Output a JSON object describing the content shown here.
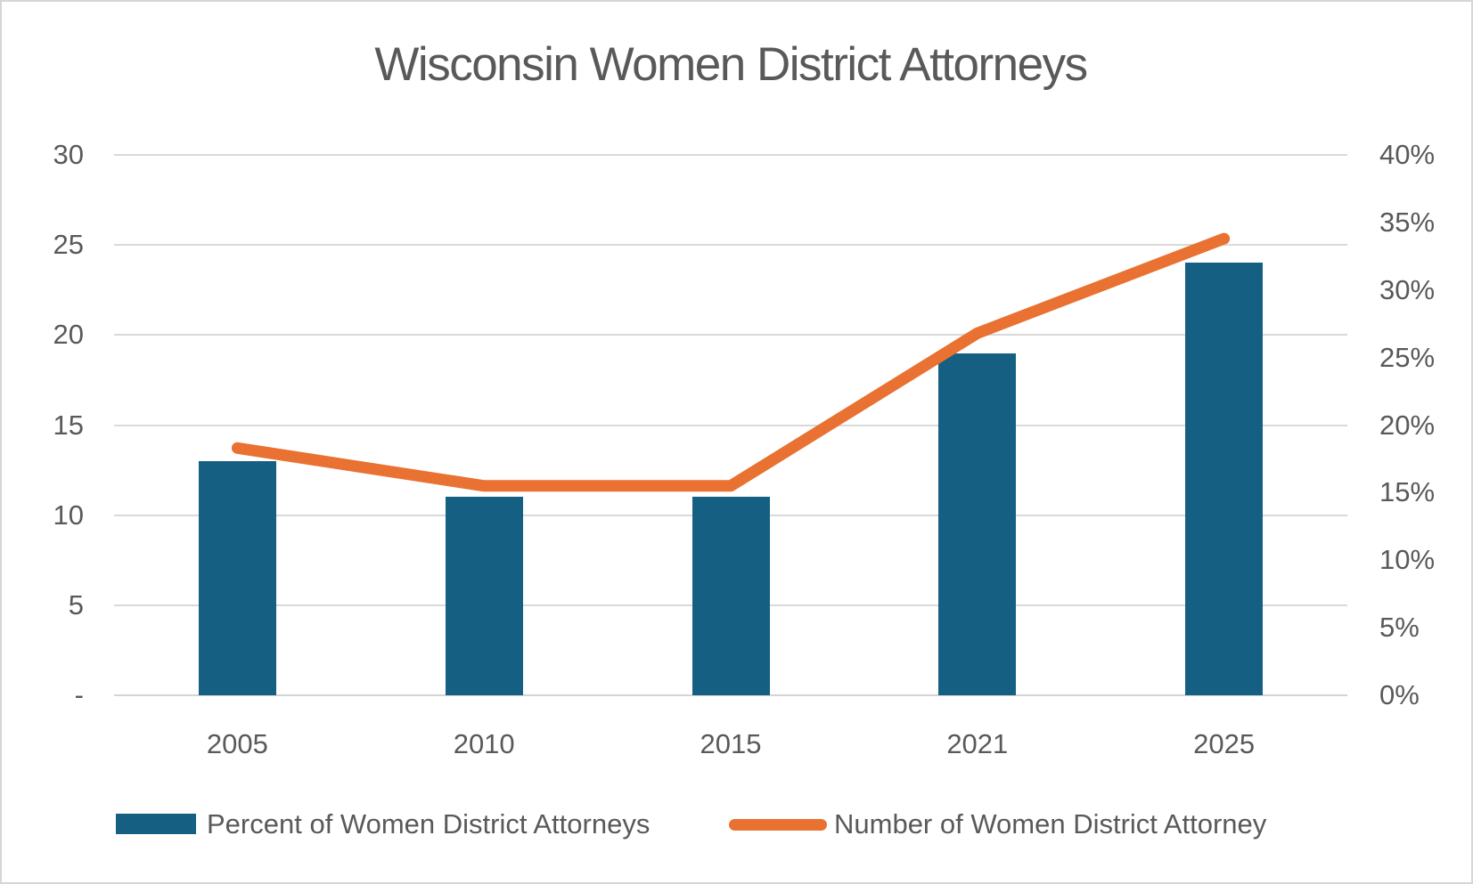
{
  "title": "Wisconsin Women District Attorneys",
  "colors": {
    "bar": "#156082",
    "line": "#E97132",
    "text": "#595959",
    "gridline": "#D9D9D9",
    "frame_border": "#D6D6D6"
  },
  "chart_data": {
    "type": "bar",
    "subtype": "combo-bar-line-dual-axis",
    "title": "Wisconsin Women District Attorneys",
    "categories": [
      "2005",
      "2010",
      "2015",
      "2021",
      "2025"
    ],
    "series": [
      {
        "name": "Percent of Women District Attorneys",
        "type": "bar",
        "axis": "left",
        "color": "#156082",
        "values": [
          13,
          11,
          11,
          19,
          24
        ]
      },
      {
        "name": "Number of Women District Attorney",
        "type": "line",
        "axis": "right",
        "color": "#E97132",
        "values": [
          18.3,
          15.5,
          15.5,
          26.8,
          33.8
        ]
      }
    ],
    "left_axis": {
      "min": 0,
      "max": 30,
      "step": 5,
      "labels": [
        "30",
        "25",
        "20",
        "15",
        "10",
        "5",
        "-"
      ]
    },
    "right_axis": {
      "min": 0,
      "max": 40,
      "step": 5,
      "labels": [
        "40%",
        "35%",
        "30%",
        "25%",
        "20%",
        "15%",
        "10%",
        "5%",
        "0%"
      ]
    },
    "grid": "horizontal",
    "legend_position": "bottom",
    "xlabel": "",
    "ylabel": ""
  }
}
